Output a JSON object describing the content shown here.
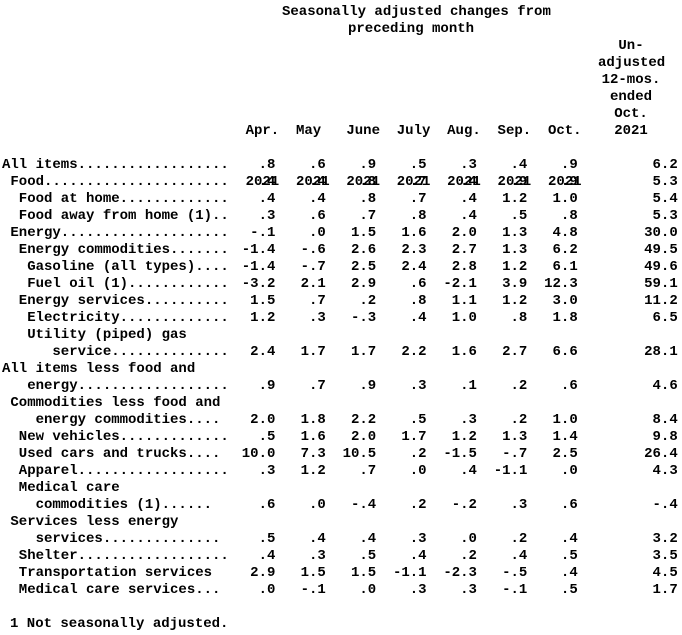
{
  "colors": {
    "background": "#ffffff",
    "text": "#000000"
  },
  "page": {
    "title_line1": "Seasonally adjusted changes from",
    "title_line2": "preceding month",
    "footnote": "1 Not seasonally adjusted."
  },
  "header": {
    "columns": [
      {
        "month": "Apr.",
        "year": "2021"
      },
      {
        "month": "May",
        "year": "2021"
      },
      {
        "month": "June",
        "year": "2021"
      },
      {
        "month": "July",
        "year": "2021"
      },
      {
        "month": "Aug.",
        "year": "2021"
      },
      {
        "month": "Sep.",
        "year": "2021"
      },
      {
        "month": "Oct.",
        "year": "2021"
      }
    ],
    "unadjusted_lines": [
      "Un-",
      "adjusted",
      "12-mos.",
      "ended",
      "Oct.",
      "2021"
    ]
  },
  "table": {
    "rows": [
      {
        "label": "All items..................",
        "values": [
          ".8",
          ".6",
          ".9",
          ".5",
          ".3",
          ".4",
          ".9",
          "6.2"
        ]
      },
      {
        "label": " Food......................",
        "values": [
          ".4",
          ".4",
          ".8",
          ".7",
          ".4",
          ".9",
          ".9",
          "5.3"
        ]
      },
      {
        "label": "  Food at home.............",
        "values": [
          ".4",
          ".4",
          ".8",
          ".7",
          ".4",
          "1.2",
          "1.0",
          "5.4"
        ]
      },
      {
        "label": "  Food away from home (1)..",
        "values": [
          ".3",
          ".6",
          ".7",
          ".8",
          ".4",
          ".5",
          ".8",
          "5.3"
        ]
      },
      {
        "label": " Energy....................",
        "values": [
          "-.1",
          ".0",
          "1.5",
          "1.6",
          "2.0",
          "1.3",
          "4.8",
          "30.0"
        ]
      },
      {
        "label": "  Energy commodities.......",
        "values": [
          "-1.4",
          "-.6",
          "2.6",
          "2.3",
          "2.7",
          "1.3",
          "6.2",
          "49.5"
        ]
      },
      {
        "label": "   Gasoline (all types)....",
        "values": [
          "-1.4",
          "-.7",
          "2.5",
          "2.4",
          "2.8",
          "1.2",
          "6.1",
          "49.6"
        ]
      },
      {
        "label": "   Fuel oil (1)............",
        "values": [
          "-3.2",
          "2.1",
          "2.9",
          ".6",
          "-2.1",
          "3.9",
          "12.3",
          "59.1"
        ]
      },
      {
        "label": "  Energy services..........",
        "values": [
          "1.5",
          ".7",
          ".2",
          ".8",
          "1.1",
          "1.2",
          "3.0",
          "11.2"
        ]
      },
      {
        "label": "   Electricity.............",
        "values": [
          "1.2",
          ".3",
          "-.3",
          ".4",
          "1.0",
          ".8",
          "1.8",
          "6.5"
        ]
      },
      {
        "label": "   Utility (piped) gas"
      },
      {
        "label": "      service..............",
        "values": [
          "2.4",
          "1.7",
          "1.7",
          "2.2",
          "1.6",
          "2.7",
          "6.6",
          "28.1"
        ]
      },
      {
        "label": "All items less food and"
      },
      {
        "label": "   energy..................",
        "values": [
          ".9",
          ".7",
          ".9",
          ".3",
          ".1",
          ".2",
          ".6",
          "4.6"
        ]
      },
      {
        "label": " Commodities less food and"
      },
      {
        "label": "    energy commodities....",
        "values": [
          "2.0",
          "1.8",
          "2.2",
          ".5",
          ".3",
          ".2",
          "1.0",
          "8.4"
        ]
      },
      {
        "label": "  New vehicles.............",
        "values": [
          ".5",
          "1.6",
          "2.0",
          "1.7",
          "1.2",
          "1.3",
          "1.4",
          "9.8"
        ]
      },
      {
        "label": "  Used cars and trucks....",
        "values": [
          "10.0",
          "7.3",
          "10.5",
          ".2",
          "-1.5",
          "-.7",
          "2.5",
          "26.4"
        ]
      },
      {
        "label": "  Apparel..................",
        "values": [
          ".3",
          "1.2",
          ".7",
          ".0",
          ".4",
          "-1.1",
          ".0",
          "4.3"
        ]
      },
      {
        "label": "  Medical care"
      },
      {
        "label": "    commodities (1)......",
        "values": [
          ".6",
          ".0",
          "-.4",
          ".2",
          "-.2",
          ".3",
          ".6",
          "-.4"
        ]
      },
      {
        "label": " Services less energy"
      },
      {
        "label": "    services..............",
        "values": [
          ".5",
          ".4",
          ".4",
          ".3",
          ".0",
          ".2",
          ".4",
          "3.2"
        ]
      },
      {
        "label": "  Shelter..................",
        "values": [
          ".4",
          ".3",
          ".5",
          ".4",
          ".2",
          ".4",
          ".5",
          "3.5"
        ]
      },
      {
        "label": "  Transportation services",
        "values": [
          "2.9",
          "1.5",
          "1.5",
          "-1.1",
          "-2.3",
          "-.5",
          ".4",
          "4.5"
        ]
      },
      {
        "label": "  Medical care services...",
        "values": [
          ".0",
          "-.1",
          ".0",
          ".3",
          ".3",
          "-.1",
          ".5",
          "1.7"
        ]
      }
    ]
  }
}
